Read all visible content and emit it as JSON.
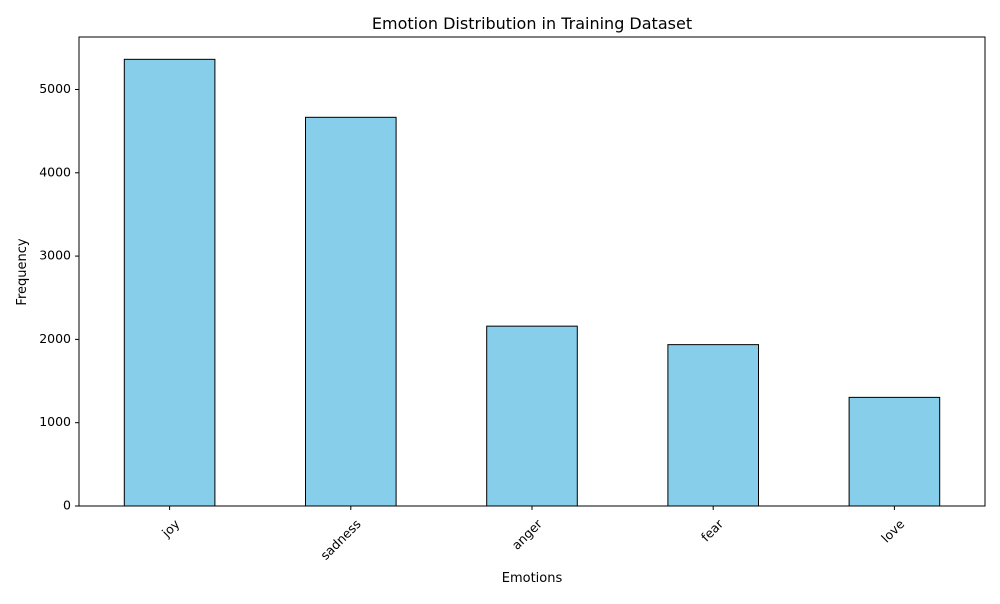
{
  "chart_data": {
    "type": "bar",
    "title": "Emotion Distribution in Training Dataset",
    "xlabel": "Emotions",
    "ylabel": "Frequency",
    "categories": [
      "joy",
      "sadness",
      "anger",
      "fear",
      "love"
    ],
    "values": [
      5362,
      4666,
      2159,
      1937,
      1304
    ],
    "ylim": [
      0,
      5630
    ],
    "yticks": [
      0,
      1000,
      2000,
      3000,
      4000,
      5000
    ],
    "bar_color": "#87CEEB",
    "edge_color": "#000000",
    "xtick_rotation": 45,
    "grid": false,
    "legend": false
  }
}
